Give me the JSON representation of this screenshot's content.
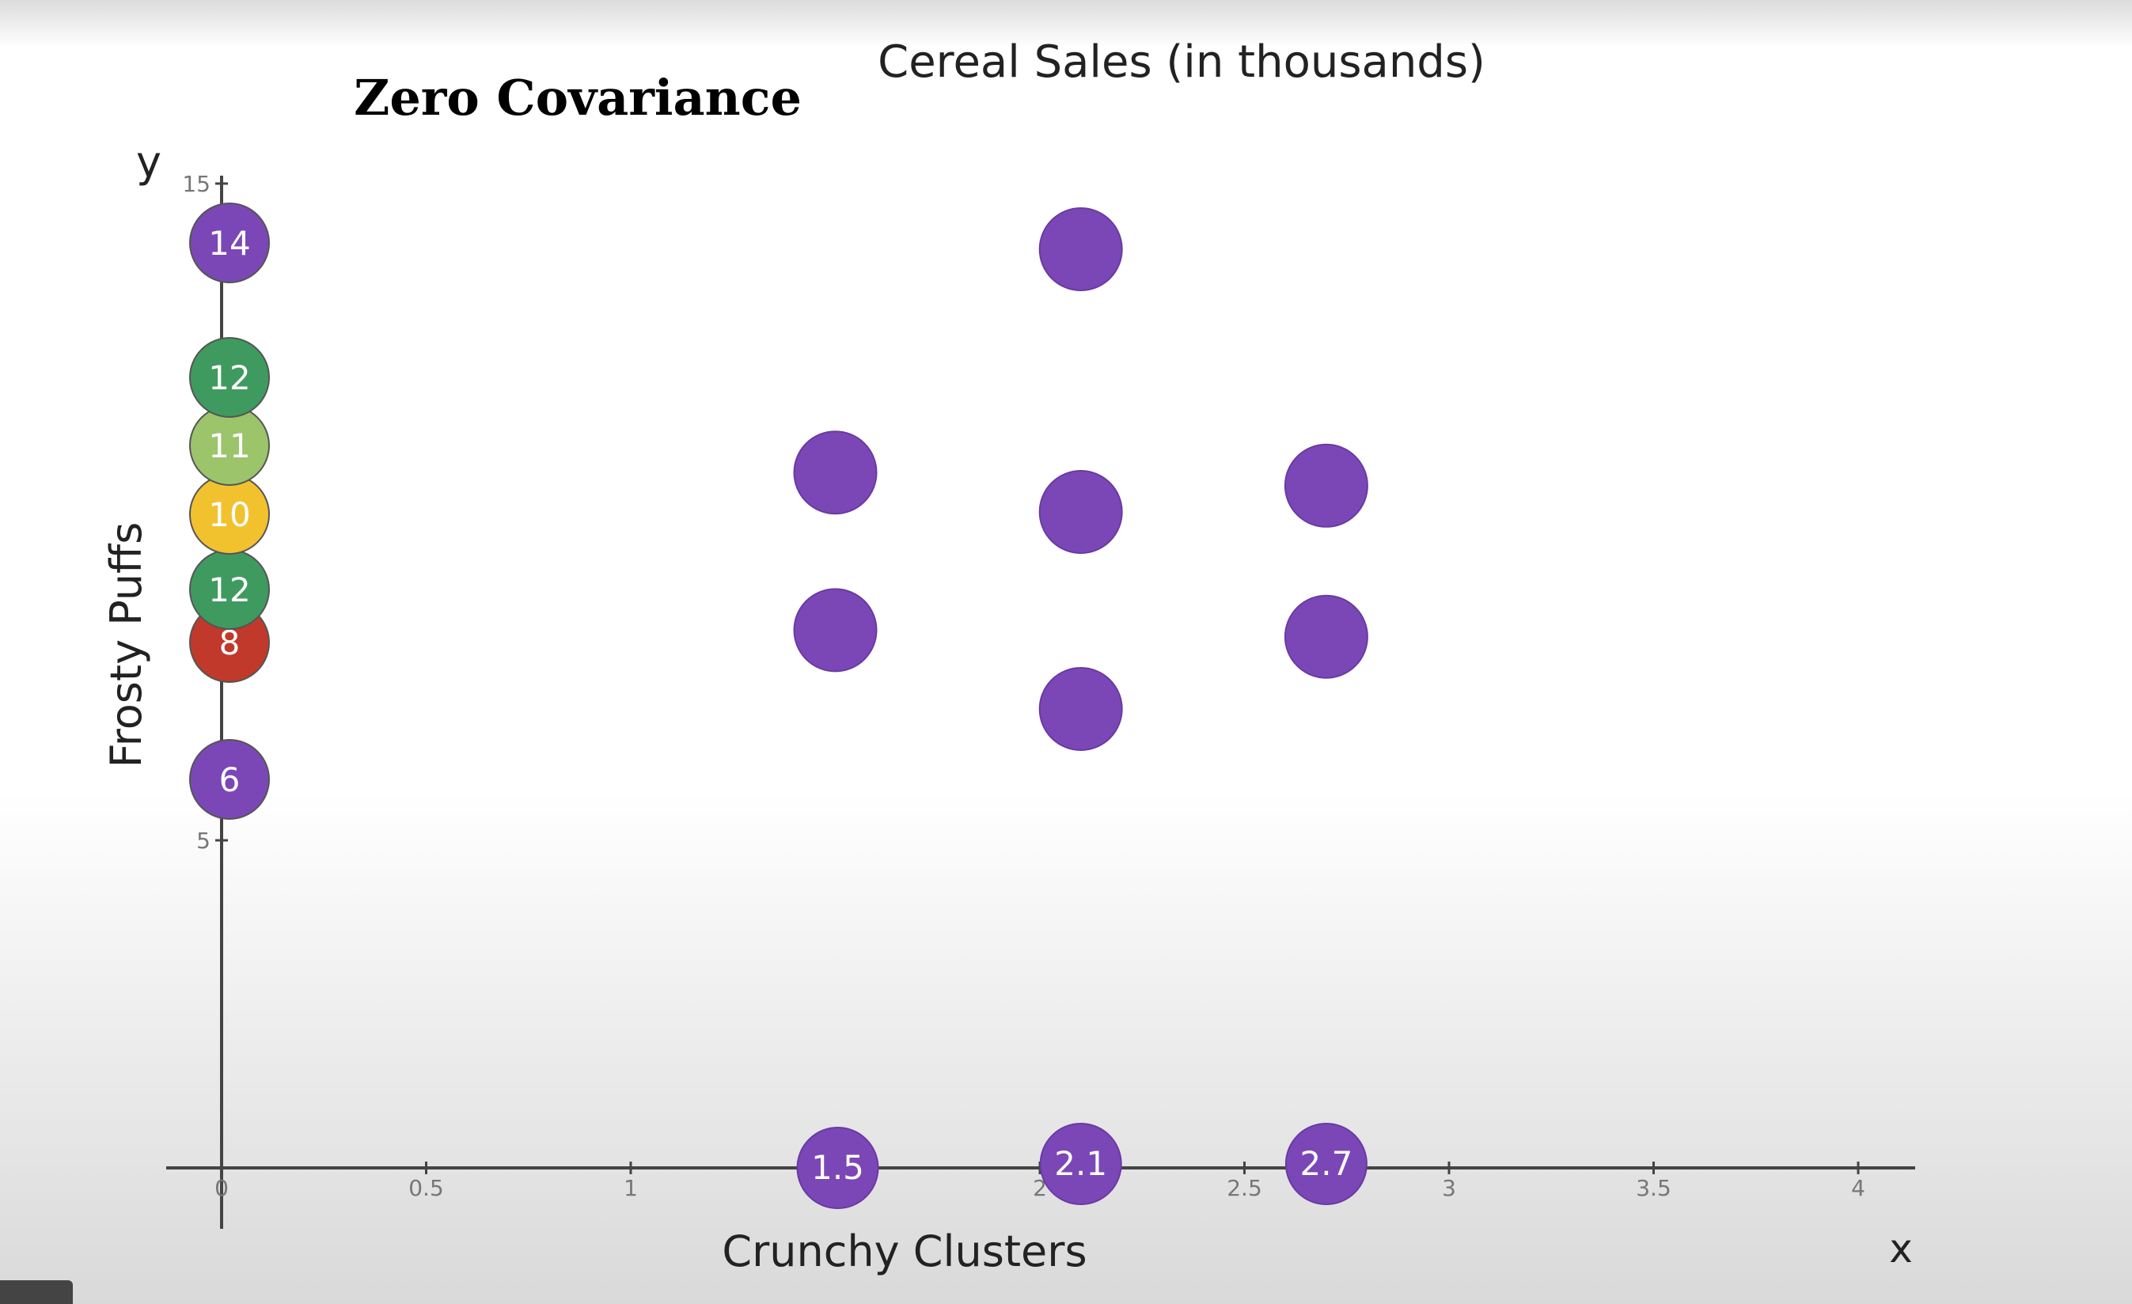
{
  "page": {
    "heading": "Zero Covariance"
  },
  "chart_data": {
    "type": "scatter",
    "title": "Cereal Sales (in thousands)",
    "xlabel": "Crunchy Clusters",
    "ylabel": "Frosty Puffs",
    "x_axis_letter": "x",
    "y_axis_letter": "y",
    "xlim": [
      0,
      4
    ],
    "ylim": [
      0,
      15
    ],
    "x_ticks": [
      0,
      0.5,
      1,
      1.5,
      2,
      2.5,
      3,
      3.5,
      4
    ],
    "x_tick_labels": [
      "0",
      "0.5",
      "1",
      "",
      "2",
      "2.5",
      "3",
      "3.5",
      "4"
    ],
    "y_ticks": [
      5,
      15
    ],
    "y_tick_labels": [
      "5",
      "15"
    ],
    "grid": false,
    "point_color": "#7b47b6",
    "points": [
      {
        "x": 2.1,
        "y": 14
      },
      {
        "x": 1.5,
        "y": 10.6
      },
      {
        "x": 2.7,
        "y": 10.4
      },
      {
        "x": 2.1,
        "y": 10
      },
      {
        "x": 1.5,
        "y": 8.2
      },
      {
        "x": 2.7,
        "y": 8.1
      },
      {
        "x": 2.1,
        "y": 7
      }
    ],
    "x_markers": [
      {
        "x": 1.5,
        "label": "1.5",
        "color": "#7b47b6"
      },
      {
        "x": 2.1,
        "label": "2.1",
        "color": "#7b47b6"
      },
      {
        "x": 2.7,
        "label": "2.7",
        "color": "#7b47b6"
      }
    ],
    "y_markers": [
      {
        "y": 6,
        "label": "6",
        "color": "#7b47b6"
      },
      {
        "y": 8,
        "label": "8",
        "color": "#c0392b"
      },
      {
        "y": 12,
        "label": "12",
        "color": "#3f9a5f"
      },
      {
        "y": 10,
        "label": "10",
        "color": "#f2c12e"
      },
      {
        "y": 11,
        "label": "11",
        "color": "#9cc46a"
      },
      {
        "y": 12,
        "label": "12",
        "color": "#3f9a5f"
      },
      {
        "y": 14,
        "label": "14",
        "color": "#7b47b6"
      }
    ]
  }
}
